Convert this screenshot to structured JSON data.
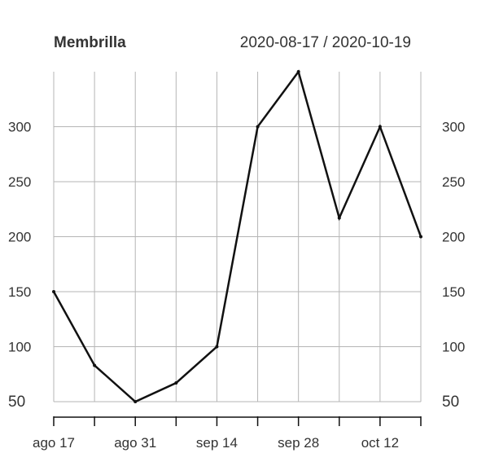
{
  "header": {
    "title": "Membrilla",
    "date_range": "2020-08-17 / 2020-10-19"
  },
  "colors": {
    "line": "#111111",
    "grid": "#b5b5b5",
    "text": "#333333"
  },
  "chart_data": {
    "type": "line",
    "title": "Membrilla",
    "subtitle": "2020-08-17 / 2020-10-19",
    "x": [
      "2020-08-17",
      "2020-08-24",
      "2020-08-31",
      "2020-09-07",
      "2020-09-14",
      "2020-09-21",
      "2020-09-28",
      "2020-10-05",
      "2020-10-12",
      "2020-10-19"
    ],
    "x_tick_labels": [
      "ago 17",
      "ago 31",
      "sep 14",
      "sep 28",
      "oct 12"
    ],
    "series": [
      {
        "values": [
          150,
          83,
          50,
          67,
          100,
          300,
          350,
          217,
          300,
          200
        ]
      }
    ],
    "y_ticks": [
      50,
      100,
      150,
      200,
      250,
      300
    ],
    "ylim": [
      50,
      350
    ],
    "grid": true,
    "y_axis": "both"
  }
}
